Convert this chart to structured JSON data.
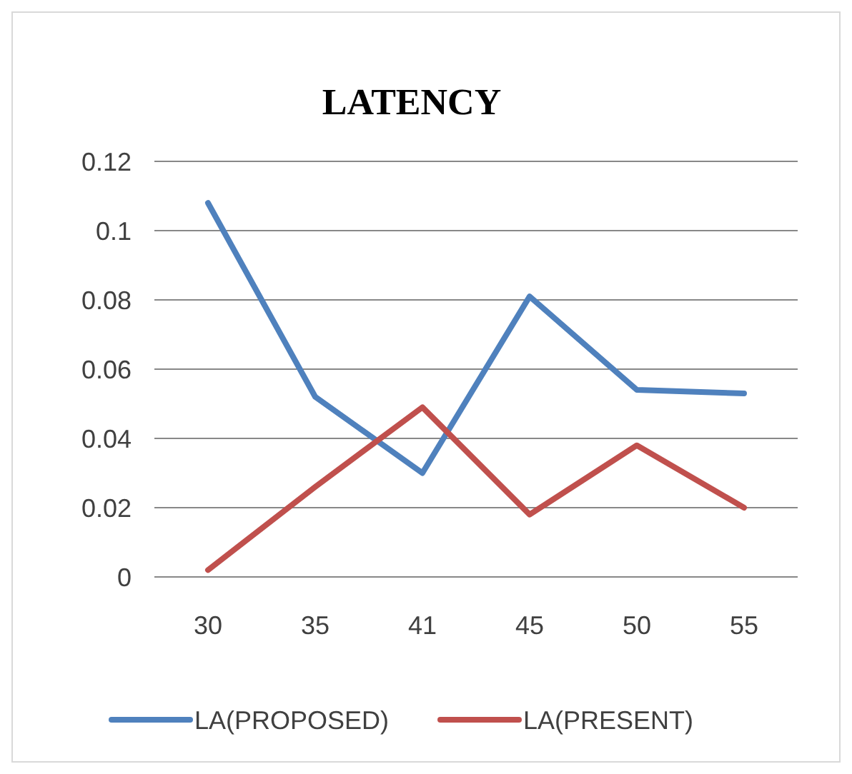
{
  "chart_data": {
    "type": "line",
    "title": "LATENCY",
    "categories": [
      "30",
      "35",
      "41",
      "45",
      "50",
      "55"
    ],
    "series": [
      {
        "name": "LA(PROPOSED)",
        "color": "#4f81bd",
        "values": [
          0.108,
          0.052,
          0.03,
          0.081,
          0.054,
          0.053
        ]
      },
      {
        "name": "LA(PRESENT)",
        "color": "#c0504d",
        "values": [
          0.002,
          0.026,
          0.049,
          0.018,
          0.038,
          0.02
        ]
      }
    ],
    "ylim": [
      0,
      0.12
    ],
    "yticks": [
      0,
      0.02,
      0.04,
      0.06,
      0.08,
      0.1,
      0.12
    ],
    "grid": "y",
    "legend": "bottom",
    "marker": "none",
    "line_style": "solid"
  }
}
